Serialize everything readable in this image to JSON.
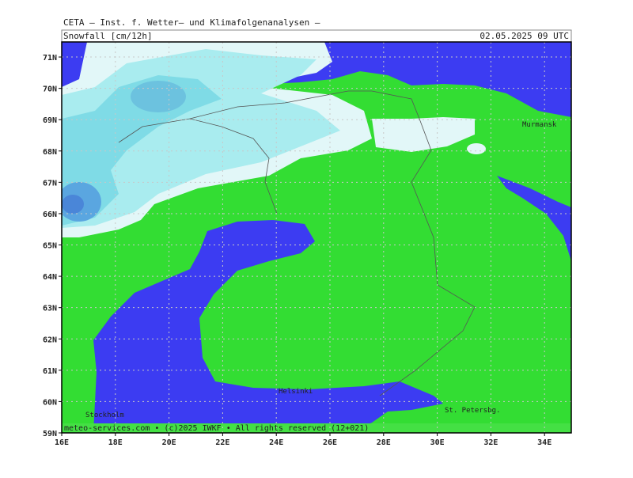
{
  "header": {
    "institute": "CETA — Inst. f. Wetter— und Klimafolgenanalysen —",
    "parameter": "Snowfall [cm/12h]",
    "valid_time": "02.05.2025 09 UTC"
  },
  "map": {
    "latitude_labels": [
      "59N",
      "60N",
      "61N",
      "62N",
      "63N",
      "64N",
      "65N",
      "66N",
      "67N",
      "68N",
      "69N",
      "70N",
      "71N"
    ],
    "longitude_labels": [
      "16E",
      "18E",
      "20E",
      "22E",
      "24E",
      "26E",
      "28E",
      "30E",
      "32E",
      "34E"
    ],
    "places": [
      "Murmansk",
      "Helsinki",
      "Stockholm",
      "St. Petersbg."
    ]
  },
  "footer": "meteo-services.com • (c)2025 IWKF • All rights reserved (12+021)"
}
